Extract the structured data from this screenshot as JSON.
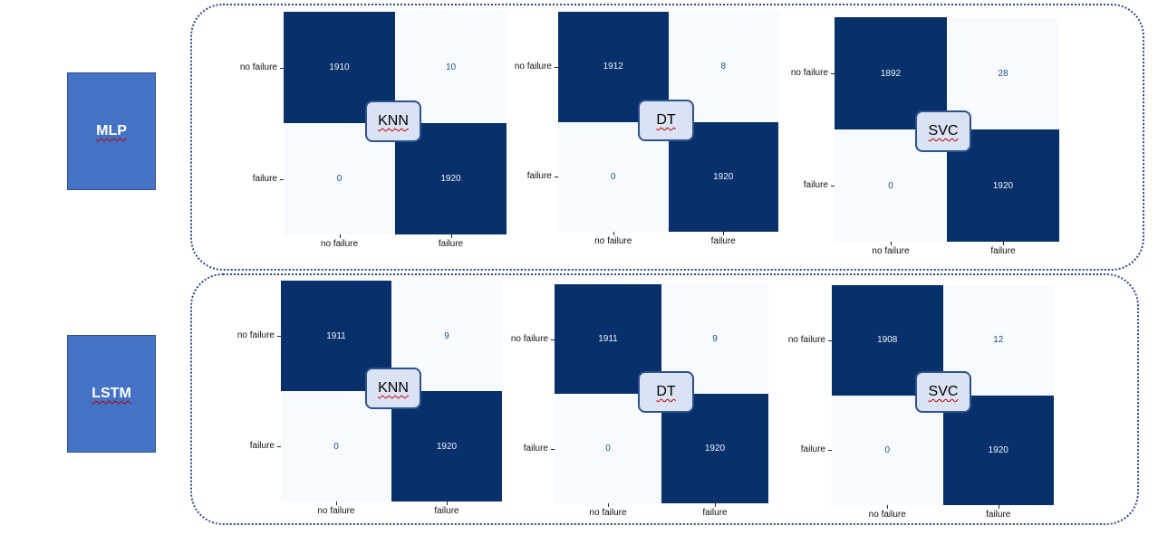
{
  "models": [
    {
      "label": "MLP"
    },
    {
      "label": "LSTM"
    }
  ],
  "class_labels": [
    "no failure",
    "failure"
  ],
  "chart_data": [
    {
      "type": "heatmap",
      "model": "MLP",
      "algorithm": "KNN",
      "categories": [
        "no failure",
        "failure"
      ],
      "matrix": [
        [
          1910,
          10
        ],
        [
          0,
          1920
        ]
      ]
    },
    {
      "type": "heatmap",
      "model": "MLP",
      "algorithm": "DT",
      "categories": [
        "no failure",
        "failure"
      ],
      "matrix": [
        [
          1912,
          8
        ],
        [
          0,
          1920
        ]
      ]
    },
    {
      "type": "heatmap",
      "model": "MLP",
      "algorithm": "SVC",
      "categories": [
        "no failure",
        "failure"
      ],
      "matrix": [
        [
          1892,
          28
        ],
        [
          0,
          1920
        ]
      ]
    },
    {
      "type": "heatmap",
      "model": "LSTM",
      "algorithm": "KNN",
      "categories": [
        "no failure",
        "failure"
      ],
      "matrix": [
        [
          1911,
          9
        ],
        [
          0,
          1920
        ]
      ]
    },
    {
      "type": "heatmap",
      "model": "LSTM",
      "algorithm": "DT",
      "categories": [
        "no failure",
        "failure"
      ],
      "matrix": [
        [
          1911,
          9
        ],
        [
          0,
          1920
        ]
      ]
    },
    {
      "type": "heatmap",
      "model": "LSTM",
      "algorithm": "SVC",
      "categories": [
        "no failure",
        "failure"
      ],
      "matrix": [
        [
          1908,
          12
        ],
        [
          0,
          1920
        ]
      ]
    }
  ]
}
